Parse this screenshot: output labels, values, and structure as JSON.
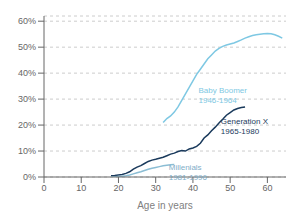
{
  "chart_data": {
    "type": "line",
    "xlabel": "Age in years",
    "xlim": [
      0,
      65
    ],
    "xticks": [
      0,
      10,
      20,
      30,
      40,
      50,
      60
    ],
    "ylim": [
      0,
      0.62
    ],
    "yticks": [
      {
        "value": 0.0,
        "label": "0%"
      },
      {
        "value": 0.1,
        "label": "10%"
      },
      {
        "value": 0.2,
        "label": "20%"
      },
      {
        "value": 0.3,
        "label": "30%"
      },
      {
        "value": 0.4,
        "label": "40%"
      },
      {
        "value": 0.5,
        "label": "50%"
      },
      {
        "value": 0.6,
        "label": "60%"
      }
    ],
    "grid": true,
    "series": [
      {
        "color": "#7ec8e3",
        "x": [
          32,
          33,
          34,
          35,
          36,
          37,
          38,
          39,
          40,
          41,
          42,
          43,
          44,
          45,
          46,
          47,
          48,
          49,
          50,
          51,
          52,
          53,
          54,
          55,
          56,
          57,
          58,
          59,
          60,
          61,
          62,
          63,
          64
        ],
        "values": [
          0.21,
          0.225,
          0.235,
          0.25,
          0.27,
          0.295,
          0.32,
          0.345,
          0.37,
          0.395,
          0.415,
          0.435,
          0.455,
          0.47,
          0.485,
          0.495,
          0.503,
          0.508,
          0.512,
          0.516,
          0.522,
          0.528,
          0.535,
          0.54,
          0.545,
          0.548,
          0.55,
          0.552,
          0.553,
          0.552,
          0.548,
          0.542,
          0.535
        ]
      },
      {
        "color": "#1a3a5c",
        "x": [
          18,
          19,
          20,
          21,
          22,
          23,
          24,
          25,
          26,
          27,
          28,
          29,
          30,
          31,
          32,
          33,
          34,
          35,
          36,
          37,
          38,
          39,
          40,
          41,
          42,
          43,
          44,
          45,
          46,
          47,
          48,
          49,
          50,
          51,
          52,
          53,
          54
        ],
        "values": [
          0.005,
          0.006,
          0.008,
          0.01,
          0.014,
          0.02,
          0.03,
          0.038,
          0.044,
          0.052,
          0.06,
          0.065,
          0.068,
          0.072,
          0.076,
          0.082,
          0.088,
          0.092,
          0.098,
          0.102,
          0.1,
          0.108,
          0.112,
          0.118,
          0.13,
          0.15,
          0.162,
          0.178,
          0.192,
          0.208,
          0.222,
          0.238,
          0.248,
          0.258,
          0.264,
          0.268,
          0.27
        ]
      },
      {
        "color": "#8bbdd4",
        "x": [
          18,
          19,
          20,
          21,
          22,
          23,
          24,
          25,
          26,
          27,
          28,
          29,
          30,
          31,
          32,
          33,
          34,
          35
        ],
        "values": [
          0.001,
          0.001,
          0.002,
          0.003,
          0.005,
          0.008,
          0.012,
          0.016,
          0.02,
          0.025,
          0.03,
          0.034,
          0.037,
          0.04,
          0.043,
          0.045,
          0.047,
          0.048
        ]
      }
    ],
    "annotations": [
      {
        "text": "Baby Boomer\n1946-1964",
        "x": 41.5,
        "y": 0.315,
        "color": "#7ec8e3"
      },
      {
        "text": "Generation X\n1965-1980",
        "x": 47.5,
        "y": 0.195,
        "color": "#1a3a5c"
      },
      {
        "text": "Millenials\n1981-1996",
        "x": 33.5,
        "y": 0.018,
        "color": "#7faec8"
      }
    ]
  }
}
